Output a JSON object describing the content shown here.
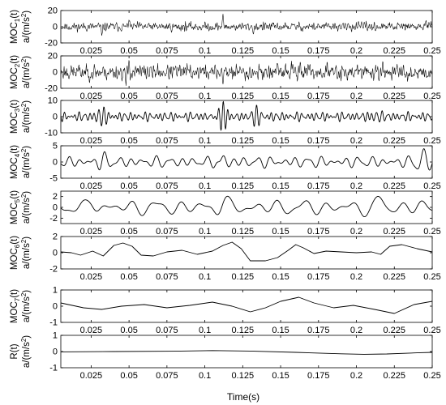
{
  "chart_data": {
    "type": "line",
    "xlabel": "Time(s)",
    "x_range": [
      0.005,
      0.25
    ],
    "x_ticks": [
      "0.025",
      "0.05",
      "0.075",
      "0.1",
      "0.125",
      "0.15",
      "0.175",
      "0.2",
      "0.225",
      "0.25"
    ],
    "panels": [
      {
        "ylabel_top": "MOC1(t)",
        "ylabel_top_base": "MOC",
        "ylabel_top_sub": "1",
        "ylabel_top_suffix": "(t)",
        "ylabel_bottom": "a/(m/s2)",
        "ylim": [
          -20,
          20
        ],
        "y_ticks": [
          "20",
          "0",
          "-20"
        ],
        "y_tick_values": [
          20,
          0,
          -20
        ],
        "signal": {
          "kind": "noise",
          "amplitude": 7,
          "seed": 11,
          "spikes": [
            {
              "t": 0.032,
              "value": -12
            },
            {
              "t": 0.05,
              "value": 10
            },
            {
              "t": 0.112,
              "value": 16
            },
            {
              "t": 0.132,
              "value": -10
            },
            {
              "t": 0.246,
              "value": 9
            }
          ]
        }
      },
      {
        "ylabel_top": "MOC2(t)",
        "ylabel_top_base": "MOC",
        "ylabel_top_sub": "2",
        "ylabel_top_suffix": "(t)",
        "ylabel_bottom": "a/(m/s2)",
        "ylim": [
          -20,
          20
        ],
        "y_ticks": [
          "20",
          "0",
          "-20"
        ],
        "y_tick_values": [
          20,
          0,
          -20
        ],
        "signal": {
          "kind": "noise",
          "amplitude": 13,
          "seed": 23,
          "spikes": [
            {
              "t": 0.048,
              "value": -17
            },
            {
              "t": 0.05,
              "value": 16
            },
            {
              "t": 0.112,
              "value": -15
            },
            {
              "t": 0.163,
              "value": 15
            }
          ]
        }
      },
      {
        "ylabel_top": "MOC3(t)",
        "ylabel_top_base": "MOC",
        "ylabel_top_sub": "3",
        "ylabel_top_suffix": "(t)",
        "ylabel_bottom": "a/(m/s2)",
        "ylim": [
          -10,
          10
        ],
        "y_ticks": [
          "10",
          "0",
          "-10"
        ],
        "y_tick_values": [
          10,
          0,
          -10
        ],
        "signal": {
          "kind": "sum",
          "components": [
            {
              "freq": 300,
              "amp": 1.4,
              "phase": 0.3
            },
            {
              "freq": 410,
              "amp": 1.0,
              "phase": 1.7
            },
            {
              "freq": 230,
              "amp": 0.9,
              "phase": 2.4
            }
          ],
          "bursts": [
            {
              "t": 0.033,
              "amp": 6,
              "width": 0.004,
              "freq": 320
            },
            {
              "t": 0.112,
              "amp": 9,
              "width": 0.005,
              "freq": 320
            },
            {
              "t": 0.134,
              "amp": 4,
              "width": 0.004,
              "freq": 300
            },
            {
              "t": 0.213,
              "amp": 3,
              "width": 0.004,
              "freq": 300
            }
          ]
        }
      },
      {
        "ylabel_top": "MOC4(t)",
        "ylabel_top_base": "MOC",
        "ylabel_top_sub": "4",
        "ylabel_top_suffix": "(t)",
        "ylabel_bottom": "a/(m/s2)",
        "ylim": [
          -5,
          5
        ],
        "y_ticks": [
          "5",
          "0",
          "-5"
        ],
        "y_tick_values": [
          5,
          0,
          -5
        ],
        "signal": {
          "kind": "sum",
          "components": [
            {
              "freq": 120,
              "amp": 0.9,
              "phase": 0.4
            },
            {
              "freq": 175,
              "amp": 0.6,
              "phase": 2.0
            },
            {
              "freq": 90,
              "amp": 0.5,
              "phase": 1.1
            }
          ],
          "bursts": [
            {
              "t": 0.033,
              "amp": 1.6,
              "width": 0.004,
              "freq": 130
            },
            {
              "t": 0.112,
              "amp": 1.8,
              "width": 0.004,
              "freq": 130
            },
            {
              "t": 0.244,
              "amp": 2.8,
              "width": 0.005,
              "freq": 110
            }
          ]
        }
      },
      {
        "ylabel_top": "MOC5(t)",
        "ylabel_top_base": "MOC",
        "ylabel_top_sub": "5",
        "ylabel_top_suffix": "(t)",
        "ylabel_bottom": "a/(m/s2)",
        "ylim": [
          -3,
          3
        ],
        "y_ticks": [
          "2",
          "0",
          "-2"
        ],
        "y_tick_values": [
          2,
          0,
          -2
        ],
        "signal": {
          "kind": "sum",
          "components": [
            {
              "freq": 62,
              "amp": 0.8,
              "phase": 0.2
            },
            {
              "freq": 95,
              "amp": 0.5,
              "phase": 1.5
            },
            {
              "freq": 41,
              "amp": 0.4,
              "phase": 2.6
            }
          ],
          "bursts": [
            {
              "t": 0.025,
              "amp": 1.2,
              "width": 0.005,
              "freq": 60
            },
            {
              "t": 0.112,
              "amp": 1.3,
              "width": 0.005,
              "freq": 60
            },
            {
              "t": 0.215,
              "amp": 1.5,
              "width": 0.006,
              "freq": 55
            }
          ]
        }
      },
      {
        "ylabel_top": "MOC6(t)",
        "ylabel_top_base": "MOC",
        "ylabel_top_sub": "6",
        "ylabel_top_suffix": "(t)",
        "ylabel_bottom": "a/(m/s2)",
        "ylim": [
          -2,
          2
        ],
        "y_ticks": [
          "2",
          "0",
          "-2"
        ],
        "y_tick_values": [
          2,
          0,
          -2
        ],
        "signal": {
          "kind": "points",
          "t": [
            0.005,
            0.012,
            0.018,
            0.026,
            0.033,
            0.04,
            0.046,
            0.052,
            0.058,
            0.066,
            0.075,
            0.085,
            0.095,
            0.105,
            0.112,
            0.118,
            0.124,
            0.13,
            0.14,
            0.148,
            0.155,
            0.16,
            0.165,
            0.172,
            0.18,
            0.19,
            0.2,
            0.21,
            0.216,
            0.222,
            0.23,
            0.24,
            0.25
          ],
          "v": [
            0.1,
            0.0,
            -0.3,
            0.2,
            -0.4,
            0.9,
            1.2,
            0.8,
            -0.3,
            -0.4,
            0.1,
            0.3,
            -0.2,
            0.2,
            0.9,
            1.3,
            0.5,
            -1.0,
            -1.0,
            -0.6,
            0.3,
            1.0,
            0.6,
            -0.1,
            0.2,
            0.1,
            0.0,
            0.1,
            -0.2,
            0.8,
            1.0,
            0.5,
            0.1
          ]
        }
      },
      {
        "ylabel_top": "MOC7(t)",
        "ylabel_top_base": "MOC",
        "ylabel_top_sub": "7",
        "ylabel_top_suffix": "(t)",
        "ylabel_bottom": "a/(m/s2)",
        "ylim": [
          -1,
          1
        ],
        "y_ticks": [
          "1",
          "0",
          "-1"
        ],
        "y_tick_values": [
          1,
          0,
          -1
        ],
        "signal": {
          "kind": "points",
          "t": [
            0.005,
            0.02,
            0.032,
            0.045,
            0.06,
            0.075,
            0.09,
            0.105,
            0.118,
            0.13,
            0.14,
            0.15,
            0.162,
            0.172,
            0.185,
            0.198,
            0.212,
            0.225,
            0.238,
            0.25
          ],
          "v": [
            0.2,
            -0.1,
            -0.2,
            0.0,
            0.1,
            -0.1,
            0.05,
            0.25,
            0.0,
            -0.35,
            -0.1,
            0.3,
            0.55,
            0.2,
            -0.1,
            0.05,
            -0.2,
            -0.45,
            0.1,
            0.3
          ]
        }
      },
      {
        "ylabel_top": "R(t)",
        "ylabel_bottom": "a/(m/s2)",
        "ylim": [
          -1,
          1
        ],
        "y_ticks": [
          "1",
          "0",
          "-1"
        ],
        "y_tick_values": [
          1,
          0,
          -1
        ],
        "signal": {
          "kind": "points",
          "t": [
            0.005,
            0.04,
            0.08,
            0.105,
            0.13,
            0.16,
            0.19,
            0.205,
            0.22,
            0.24,
            0.25
          ],
          "v": [
            -0.02,
            0.0,
            0.02,
            0.06,
            0.03,
            -0.05,
            -0.14,
            -0.17,
            -0.15,
            -0.08,
            -0.05
          ]
        }
      }
    ]
  }
}
